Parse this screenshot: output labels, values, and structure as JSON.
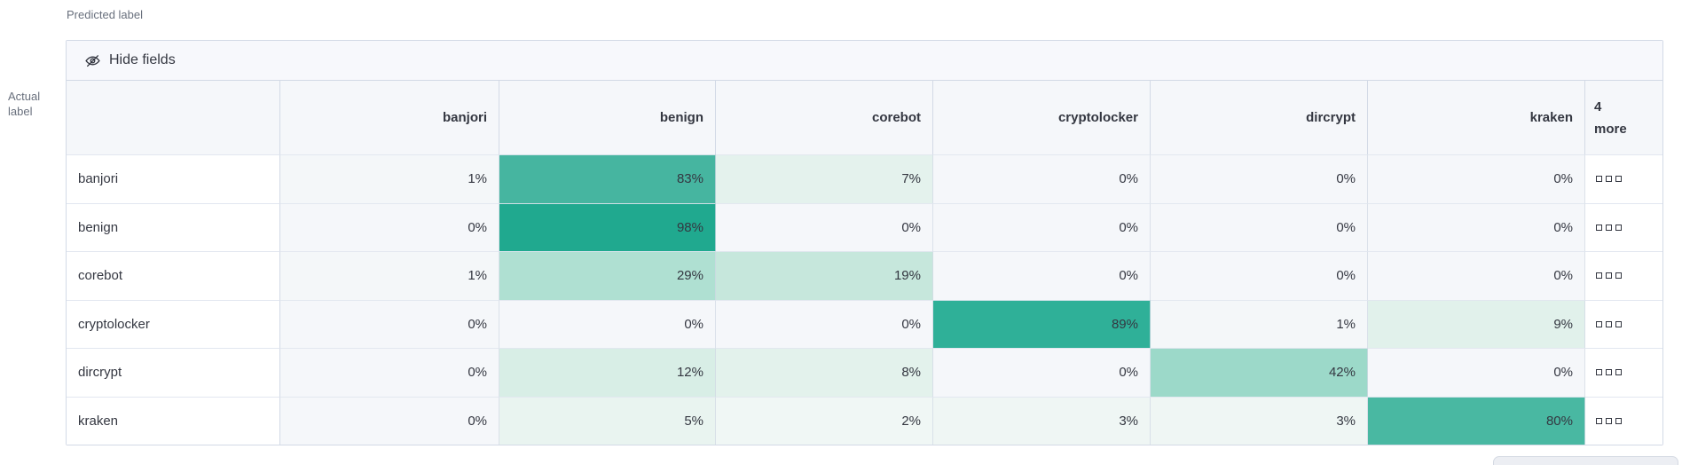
{
  "axes": {
    "predicted_label": "Predicted label",
    "actual_label_line1": "Actual",
    "actual_label_line2": "label"
  },
  "toolbar": {
    "hide_fields_label": "Hide fields"
  },
  "matrix": {
    "columns": [
      "banjori",
      "benign",
      "corebot",
      "cryptolocker",
      "dircrypt",
      "kraken"
    ],
    "more_column": {
      "line1": "4",
      "line2": "more"
    },
    "rows": [
      {
        "label": "banjori",
        "values": [
          "1%",
          "83%",
          "7%",
          "0%",
          "0%",
          "0%"
        ]
      },
      {
        "label": "benign",
        "values": [
          "0%",
          "98%",
          "0%",
          "0%",
          "0%",
          "0%"
        ]
      },
      {
        "label": "corebot",
        "values": [
          "1%",
          "29%",
          "19%",
          "0%",
          "0%",
          "0%"
        ]
      },
      {
        "label": "cryptolocker",
        "values": [
          "0%",
          "0%",
          "0%",
          "89%",
          "1%",
          "9%"
        ]
      },
      {
        "label": "dircrypt",
        "values": [
          "0%",
          "12%",
          "8%",
          "0%",
          "42%",
          "0%"
        ]
      },
      {
        "label": "kraken",
        "values": [
          "0%",
          "5%",
          "2%",
          "3%",
          "3%",
          "80%"
        ]
      }
    ]
  },
  "chart_data": {
    "type": "heatmap",
    "title": "Confusion matrix (Actual label vs Predicted label)",
    "x_categories": [
      "banjori",
      "benign",
      "corebot",
      "cryptolocker",
      "dircrypt",
      "kraken",
      "4 more"
    ],
    "y_categories": [
      "banjori",
      "benign",
      "corebot",
      "cryptolocker",
      "dircrypt",
      "kraken"
    ],
    "values_percent": [
      [
        1,
        83,
        7,
        0,
        0,
        0
      ],
      [
        0,
        98,
        0,
        0,
        0,
        0
      ],
      [
        1,
        29,
        19,
        0,
        0,
        0
      ],
      [
        0,
        0,
        0,
        89,
        1,
        9
      ],
      [
        0,
        12,
        8,
        0,
        42,
        0
      ],
      [
        0,
        5,
        2,
        3,
        3,
        80
      ]
    ]
  },
  "colors": {
    "accent_teal_high": "#20a98f",
    "heat": {
      "0%": "#f5f7fa",
      "1%": "#f4f7f9",
      "2%": "#f0f7f5",
      "3%": "#eff6f4",
      "5%": "#e9f4f0",
      "7%": "#e4f2ed",
      "8%": "#e3f2ec",
      "9%": "#e1f1eb",
      "12%": "#d8eee6",
      "19%": "#c6e7dc",
      "29%": "#afe0d2",
      "42%": "#9cd9c9",
      "80%": "#49b8a2",
      "83%": "#46b5a0",
      "89%": "#2fb098",
      "98%": "#20a98f"
    }
  },
  "icons": {
    "hide_fields": "eye-closed-icon",
    "row_overflow": "boxes-horizontal-icon"
  }
}
